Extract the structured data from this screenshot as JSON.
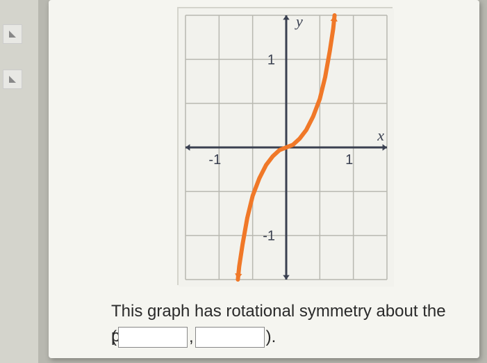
{
  "chart": {
    "type": "line",
    "background_color": "#f2f2ed",
    "grid_color": "#b8b8b0",
    "grid_line_width": 1.5,
    "axis_color": "#3a4050",
    "axis_line_width": 3,
    "arrow_size": 8,
    "xlim": [
      -1.5,
      1.5
    ],
    "ylim": [
      -1.5,
      1.5
    ],
    "xtick_step": 0.5,
    "ytick_step": 0.5,
    "x_label": "x",
    "y_label": "y",
    "label_fontsize": 22,
    "label_color": "#3a4050",
    "label_font_style": "italic",
    "tick_labels": {
      "x": [
        {
          "val": -1,
          "text": "-1"
        },
        {
          "val": 1,
          "text": "1"
        }
      ],
      "y": [
        {
          "val": -1,
          "text": "-1"
        },
        {
          "val": 1,
          "text": "1"
        }
      ]
    },
    "tick_label_fontsize": 20,
    "curve": {
      "color": "#f07828",
      "line_width": 6,
      "points": [
        [
          -0.72,
          -1.5
        ],
        [
          -0.7,
          -1.35
        ],
        [
          -0.65,
          -1.1
        ],
        [
          -0.58,
          -0.8
        ],
        [
          -0.5,
          -0.55
        ],
        [
          -0.4,
          -0.35
        ],
        [
          -0.3,
          -0.2
        ],
        [
          -0.2,
          -0.1
        ],
        [
          -0.1,
          -0.03
        ],
        [
          0,
          0
        ],
        [
          0.1,
          0.03
        ],
        [
          0.2,
          0.1
        ],
        [
          0.3,
          0.2
        ],
        [
          0.4,
          0.35
        ],
        [
          0.5,
          0.55
        ],
        [
          0.58,
          0.8
        ],
        [
          0.65,
          1.1
        ],
        [
          0.7,
          1.35
        ],
        [
          0.72,
          1.5
        ]
      ],
      "arrow_start": true,
      "arrow_end": true
    }
  },
  "question": {
    "text": "This graph has rotational symmetry about the point",
    "open_paren": "(",
    "comma": ",",
    "close_paren": ")."
  },
  "inputs": {
    "x_value": "",
    "y_value": ""
  }
}
